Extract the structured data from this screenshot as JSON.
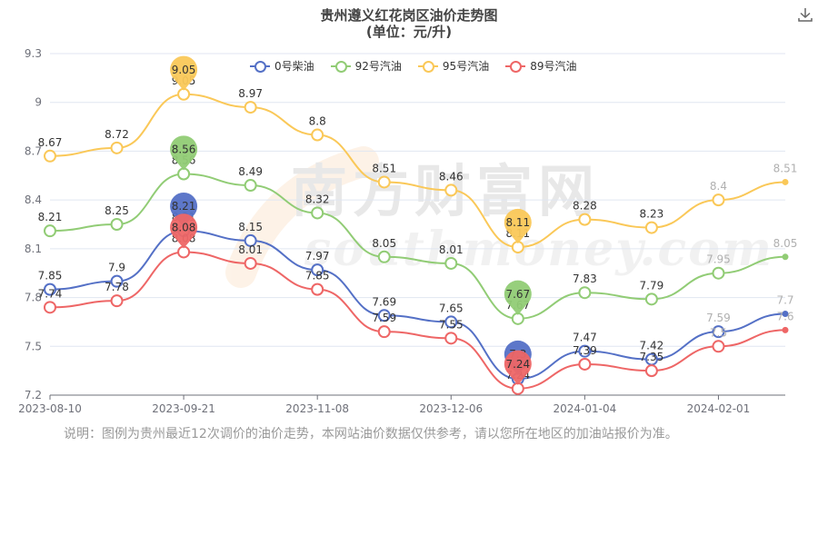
{
  "header": {
    "title": "贵州遵义红花岗区油价走势图",
    "subtitle": "(单位：元/升)"
  },
  "toolbar": {
    "download_icon": "download-icon"
  },
  "note": "说明：图例为贵州最近12次调价的油价走势，本网站油价数据仅供参考，请以您所在地区的加油站报价为准。",
  "watermark": {
    "text_cn": "南方财富网",
    "text_en": "southmoney.com"
  },
  "chart_data": {
    "type": "line",
    "title": "贵州遵义红花岗区油价走势图",
    "subtitle": "(单位：元/升)",
    "x_tick_labels": [
      "2023-08-10",
      "2023-09-21",
      "2023-11-08",
      "2023-12-06",
      "2024-01-04",
      "2024-02-01"
    ],
    "x_tick_index": [
      0,
      2,
      4,
      6,
      8,
      10
    ],
    "ylim": [
      7.2,
      9.3
    ],
    "y_ticks": [
      7.2,
      7.5,
      7.8,
      8.1,
      8.4,
      8.7,
      9,
      9.3
    ],
    "grid": "horizontal",
    "legend_position": "top-center",
    "series": [
      {
        "name": "0号柴油",
        "color": "#5470c6",
        "values": [
          7.85,
          7.9,
          8.21,
          8.15,
          7.97,
          7.69,
          7.65,
          7.3,
          7.47,
          7.42,
          7.59,
          7.7
        ],
        "max_pin": {
          "index": 2,
          "value": 8.21
        },
        "min_pin": {
          "index": 7,
          "value": 7.3
        }
      },
      {
        "name": "92号汽油",
        "color": "#91cc75",
        "values": [
          8.21,
          8.25,
          8.56,
          8.49,
          8.32,
          8.05,
          8.01,
          7.67,
          7.83,
          7.79,
          7.95,
          8.05
        ],
        "max_pin": {
          "index": 2,
          "value": 8.56
        },
        "min_pin": {
          "index": 7,
          "value": 7.67
        }
      },
      {
        "name": "95号汽油",
        "color": "#fac858",
        "values": [
          8.67,
          8.72,
          9.05,
          8.97,
          8.8,
          8.51,
          8.46,
          8.11,
          8.28,
          8.23,
          8.4,
          8.51
        ],
        "max_pin": {
          "index": 2,
          "value": 9.05
        },
        "min_pin": {
          "index": 7,
          "value": 8.11
        }
      },
      {
        "name": "89号汽油",
        "color": "#ee6666",
        "values": [
          7.74,
          7.78,
          8.08,
          8.01,
          7.85,
          7.59,
          7.55,
          7.24,
          7.39,
          7.35,
          7.5,
          7.6
        ],
        "max_pin": {
          "index": 2,
          "value": 8.08
        },
        "min_pin": {
          "index": 7,
          "value": 7.24
        }
      }
    ]
  }
}
